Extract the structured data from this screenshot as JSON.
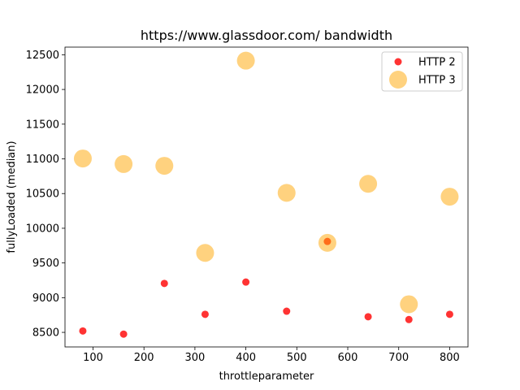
{
  "chart_data": {
    "type": "scatter",
    "title": "https://www.glassdoor.com/ bandwidth",
    "xlabel": "throttleparameter",
    "ylabel": "fullyLoaded (median)",
    "xlim": [
      45,
      836
    ],
    "ylim": [
      8290,
      12610
    ],
    "xticks": [
      100,
      200,
      300,
      400,
      500,
      600,
      700,
      800
    ],
    "yticks": [
      8500,
      9000,
      9500,
      10000,
      10500,
      11000,
      11500,
      12000,
      12500
    ],
    "grid": false,
    "legend_position": "top-right",
    "series": [
      {
        "name": "HTTP 2",
        "color": "#ff0000",
        "opacity": 0.8,
        "marker_size": "small",
        "points": [
          {
            "x": 80,
            "y": 8520
          },
          {
            "x": 160,
            "y": 8475
          },
          {
            "x": 240,
            "y": 9205
          },
          {
            "x": 320,
            "y": 8760
          },
          {
            "x": 400,
            "y": 9225
          },
          {
            "x": 480,
            "y": 8805
          },
          {
            "x": 560,
            "y": 9810
          },
          {
            "x": 640,
            "y": 8725
          },
          {
            "x": 720,
            "y": 8685
          },
          {
            "x": 800,
            "y": 8760
          }
        ]
      },
      {
        "name": "HTTP 3",
        "color": "#ffa500",
        "opacity": 0.5,
        "marker_size": "large",
        "points": [
          {
            "x": 80,
            "y": 11005
          },
          {
            "x": 160,
            "y": 10925
          },
          {
            "x": 240,
            "y": 10900
          },
          {
            "x": 320,
            "y": 9645
          },
          {
            "x": 400,
            "y": 12415
          },
          {
            "x": 480,
            "y": 10510
          },
          {
            "x": 560,
            "y": 9790
          },
          {
            "x": 640,
            "y": 10640
          },
          {
            "x": 720,
            "y": 8905
          },
          {
            "x": 800,
            "y": 10455
          }
        ]
      }
    ]
  }
}
